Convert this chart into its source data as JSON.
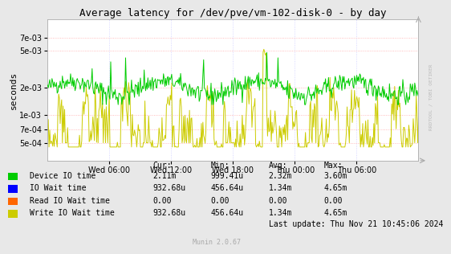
{
  "title": "Average latency for /dev/pve/vm-102-disk-0 - by day",
  "ylabel": "seconds",
  "background_color": "#e8e8e8",
  "plot_bg_color": "#ffffff",
  "grid_color_h": "#ffaaaa",
  "grid_color_v": "#ccccff",
  "xtick_labels": [
    "Wed 06:00",
    "Wed 12:00",
    "Wed 18:00",
    "Thu 00:00",
    "Thu 06:00"
  ],
  "ytick_values": [
    0.0005,
    0.0007,
    0.001,
    0.002,
    0.005,
    0.007
  ],
  "ytick_labels": [
    "5e-04",
    "7e-04",
    "1e-03",
    "2e-03",
    "5e-03",
    "7e-03"
  ],
  "ymin": 0.00032,
  "ymax": 0.011,
  "legend_items": [
    {
      "label": "Device IO time",
      "color": "#00cc00"
    },
    {
      "label": "IO Wait time",
      "color": "#0000ff"
    },
    {
      "label": "Read IO Wait time",
      "color": "#ff6600"
    },
    {
      "label": "Write IO Wait time",
      "color": "#cccc00"
    }
  ],
  "table_headers": [
    "Cur:",
    "Min:",
    "Avg:",
    "Max:"
  ],
  "table_rows": [
    [
      "Device IO time",
      "2.11m",
      "999.41u",
      "2.32m",
      "3.60m"
    ],
    [
      "IO Wait time",
      "932.68u",
      "456.64u",
      "1.34m",
      "4.65m"
    ],
    [
      "Read IO Wait time",
      "0.00",
      "0.00",
      "0.00",
      "0.00"
    ],
    [
      "Write IO Wait time",
      "932.68u",
      "456.64u",
      "1.34m",
      "4.65m"
    ]
  ],
  "last_update": "Last update: Thu Nov 21 10:45:06 2024",
  "watermark": "Munin 2.0.67",
  "right_label": "RRDTOOL / TOBI OETIKER",
  "green_color": "#00cc00",
  "yellow_color": "#cccc00"
}
